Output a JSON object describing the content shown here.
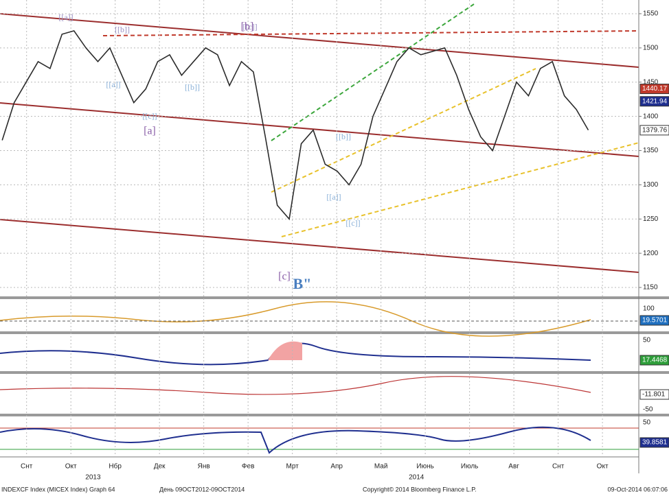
{
  "chart_data": {
    "type": "line",
    "x": [
      0.45,
      0.72,
      0.99,
      1.26,
      1.53,
      1.8,
      2.07,
      2.34,
      2.61,
      2.88,
      3.15,
      3.42,
      3.69,
      3.96,
      4.23,
      4.5,
      4.77,
      5.04,
      5.31,
      5.58,
      5.85,
      6.12,
      6.39,
      6.66,
      6.93,
      7.2,
      7.47,
      7.74,
      8.01,
      8.28,
      8.55,
      8.82,
      9.09,
      9.36,
      9.63,
      9.9,
      10.17,
      10.44,
      10.71,
      10.98,
      11.25,
      11.52,
      11.79,
      12.06,
      12.33,
      12.6,
      12.87,
      13.14,
      13.41,
      13.68
    ],
    "series": [
      {
        "name": "INDEXCF Index (MICEX Index)",
        "color": "#2b2b2b",
        "values": [
          1365,
          1420,
          1450,
          1480,
          1470,
          1520,
          1525,
          1500,
          1480,
          1500,
          1460,
          1420,
          1440,
          1480,
          1490,
          1460,
          1480,
          1500,
          1490,
          1445,
          1480,
          1465,
          1370,
          1270,
          1250,
          1360,
          1380,
          1330,
          1320,
          1300,
          1330,
          1400,
          1440,
          1480,
          1500,
          1490,
          1495,
          1500,
          1460,
          1410,
          1370,
          1350,
          1400,
          1450,
          1430,
          1470,
          1480,
          1430,
          1410,
          1380
        ]
      }
    ],
    "xlim": [
      0.4,
      14.82
    ],
    "ylim": [
      1137,
      1565
    ],
    "yticks": [
      1150,
      1200,
      1250,
      1300,
      1350,
      1400,
      1450,
      1500,
      1550
    ],
    "xticks": [
      {
        "value": 1,
        "label": "Снт"
      },
      {
        "value": 2,
        "label": "Окт"
      },
      {
        "value": 3,
        "label": "Нбр"
      },
      {
        "value": 4,
        "label": "Дек"
      },
      {
        "value": 5,
        "label": "Янв"
      },
      {
        "value": 6,
        "label": "Фев"
      },
      {
        "value": 7,
        "label": "Мрт"
      },
      {
        "value": 8,
        "label": "Апр"
      },
      {
        "value": 9,
        "label": "Май"
      },
      {
        "value": 10,
        "label": "Июнь"
      },
      {
        "value": 11,
        "label": "Июль"
      },
      {
        "value": 12,
        "label": "Авг"
      },
      {
        "value": 13,
        "label": "Снт"
      },
      {
        "value": 14,
        "label": "Окт"
      }
    ],
    "years": [
      {
        "value": 2.5,
        "label": "2013"
      },
      {
        "value": 9.8,
        "label": "2014"
      }
    ],
    "price_tags": [
      {
        "value": 1440.17,
        "color": "#c0392b"
      },
      {
        "value": 1421.94,
        "color": "#1f2f8f"
      },
      {
        "value": 1379.76,
        "color": "#ffffff"
      }
    ],
    "wave_labels": [
      "[[a]]",
      "[[b]]",
      "[[c]]",
      "[a]",
      "[[a]]",
      "[[b]]",
      "[[c]]",
      "[b]",
      "[[a]]",
      "[[b]]",
      "[[c]]",
      "[c]",
      "B\""
    ],
    "grid": true,
    "panels": [
      {
        "ticks": [
          "100"
        ],
        "tag": "19.5701",
        "tag_color": "#1f6fbf"
      },
      {
        "ticks": [
          "50"
        ],
        "tag": "17.4468",
        "tag_color": "#2e9e3a"
      },
      {
        "ticks": [
          "-50"
        ],
        "tag": "-11.801",
        "tag_color": "#ffffff"
      },
      {
        "ticks": [
          "50"
        ],
        "tag": "39.8581",
        "tag_color": "#1f2f8f"
      }
    ],
    "footer": [
      "INDEXCF Index (MICEX Index) Graph 64",
      "День 09OCT2012-09OCT2014",
      "Copyright© 2014 Bloomberg Finance L.P.",
      "09-Oct-2014 06:07:06"
    ]
  }
}
